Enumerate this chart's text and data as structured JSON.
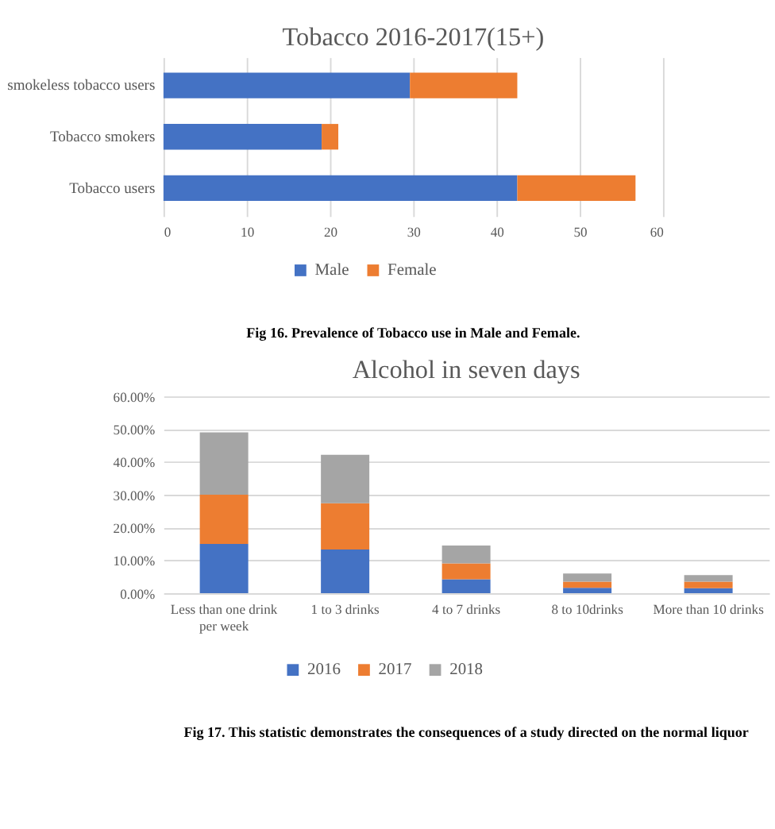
{
  "chart_data": [
    {
      "type": "bar",
      "title": "Tobacco 2016-2017(15+)",
      "orientation": "horizontal",
      "stacked": true,
      "categories": [
        "smokeless tobacco users",
        "Tobacco smokers",
        "Tobacco users"
      ],
      "series": [
        {
          "name": "Male",
          "color": "#4472c4",
          "values": [
            29.6,
            19,
            42.5
          ]
        },
        {
          "name": "Female",
          "color": "#ed7d31",
          "values": [
            12.9,
            2,
            14.2
          ]
        }
      ],
      "xlim": [
        0,
        60
      ],
      "xticks": [
        0,
        10,
        20,
        30,
        40,
        50,
        60
      ],
      "grid": "x",
      "legend": "bottom",
      "annotations": [
        "Fig 16. Prevalence of Tobacco use in Male and Female."
      ]
    },
    {
      "type": "bar",
      "title": "Alcohol in seven days",
      "stacked": true,
      "categories": [
        "Less than one drink per week",
        "1 to 3 drinks",
        "4 to 7 drinks",
        "8 to 10drinks",
        "More than 10 drinks"
      ],
      "series": [
        {
          "name": "2016",
          "color": "#4472c4",
          "values": [
            15,
            13.3,
            4.2,
            1.6,
            1.5
          ]
        },
        {
          "name": "2017",
          "color": "#ed7d31",
          "values": [
            15,
            14.1,
            4.9,
            1.9,
            2.0
          ]
        },
        {
          "name": "2018",
          "color": "#a5a5a5",
          "values": [
            19,
            14.8,
            5.4,
            2.5,
            2.0
          ]
        }
      ],
      "ylim": [
        0,
        60
      ],
      "yticks": [
        {
          "value": 0,
          "label": "0.00%"
        },
        {
          "value": 10,
          "label": "10.00%"
        },
        {
          "value": 20,
          "label": "20.00%"
        },
        {
          "value": 30,
          "label": "30.00%"
        },
        {
          "value": 40,
          "label": "40.00%"
        },
        {
          "value": 50,
          "label": "50.00%"
        },
        {
          "value": 60,
          "label": "60.00%"
        }
      ],
      "grid": "y",
      "legend": "bottom",
      "annotations": [
        "Fig 17. This statistic demonstrates the consequences of a study directed on the normal liquor"
      ]
    }
  ]
}
